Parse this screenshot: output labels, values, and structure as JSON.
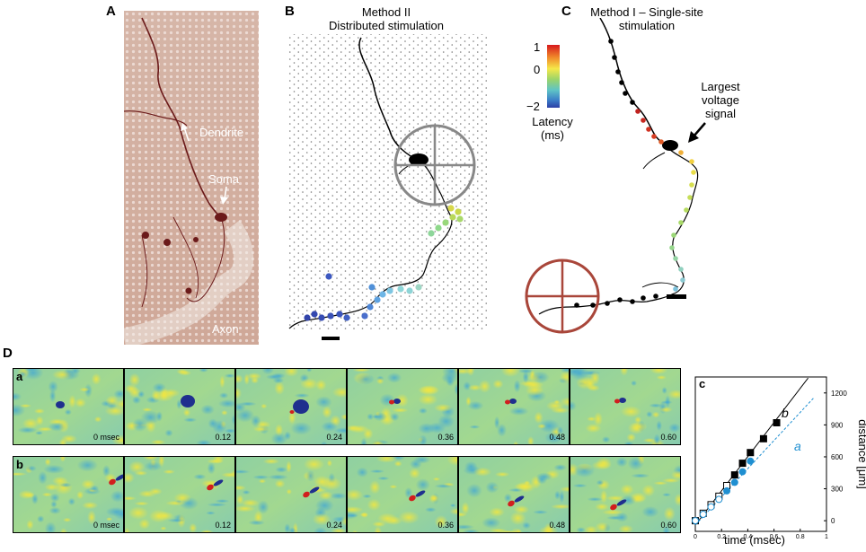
{
  "panels": {
    "A": {
      "letter": "A",
      "labels": {
        "dendrite": "Dendrite",
        "soma": "Soma",
        "axon": "Axon"
      }
    },
    "B": {
      "letter": "B",
      "title_line1": "Method II",
      "title_line2": "Distributed stimulation"
    },
    "C": {
      "letter": "C",
      "title_line1": "Method I – Single-site",
      "title_line2": "stimulation",
      "colorbar": {
        "ticks": [
          "1",
          "0",
          "−2"
        ],
        "label_line1": "Latency",
        "label_line2": "(ms)",
        "range": [
          -2,
          1
        ]
      },
      "annotation_line1": "Largest",
      "annotation_line2": "voltage",
      "annotation_line3": "signal"
    },
    "D": {
      "letter": "D",
      "rows": [
        {
          "label": "a",
          "times": [
            "0 msec",
            "0.12",
            "0.24",
            "0.36",
            "0.48",
            "0.60"
          ]
        },
        {
          "label": "b",
          "times": [
            "0 msec",
            "0.12",
            "0.24",
            "0.36",
            "0.48",
            "0.60"
          ]
        }
      ],
      "plot_label": "c"
    }
  },
  "chart_data": {
    "type": "scatter",
    "xlabel": "time (msec)",
    "ylabel": "distance [μm]",
    "xticks": [
      "0",
      "0.2",
      "0.4",
      "0.6",
      "0.8",
      "1"
    ],
    "yticks": [
      "0",
      "300",
      "600",
      "900",
      "1200"
    ],
    "xlim": [
      0,
      1.0
    ],
    "ylim": [
      -100,
      1350
    ],
    "series": [
      {
        "name": "b",
        "color": "#000000",
        "marker": "square",
        "x": [
          0.0,
          0.06,
          0.12,
          0.18,
          0.24,
          0.3,
          0.36,
          0.42,
          0.52,
          0.62
        ],
        "y": [
          0,
          70,
          150,
          230,
          330,
          430,
          540,
          640,
          770,
          920
        ],
        "filled": [
          false,
          false,
          false,
          false,
          false,
          true,
          true,
          true,
          true,
          true
        ],
        "fit": {
          "x": [
            0.0,
            0.86
          ],
          "y": [
            -40,
            1340
          ]
        }
      },
      {
        "name": "a",
        "color": "#1f8fd1",
        "marker": "circle",
        "x": [
          0.0,
          0.06,
          0.12,
          0.18,
          0.24,
          0.3,
          0.36,
          0.42
        ],
        "y": [
          0,
          60,
          130,
          200,
          280,
          360,
          460,
          560
        ],
        "filled": [
          false,
          false,
          false,
          false,
          true,
          true,
          true,
          true
        ],
        "fit": {
          "x": [
            0.0,
            0.9
          ],
          "y": [
            -40,
            1150
          ]
        }
      }
    ]
  }
}
